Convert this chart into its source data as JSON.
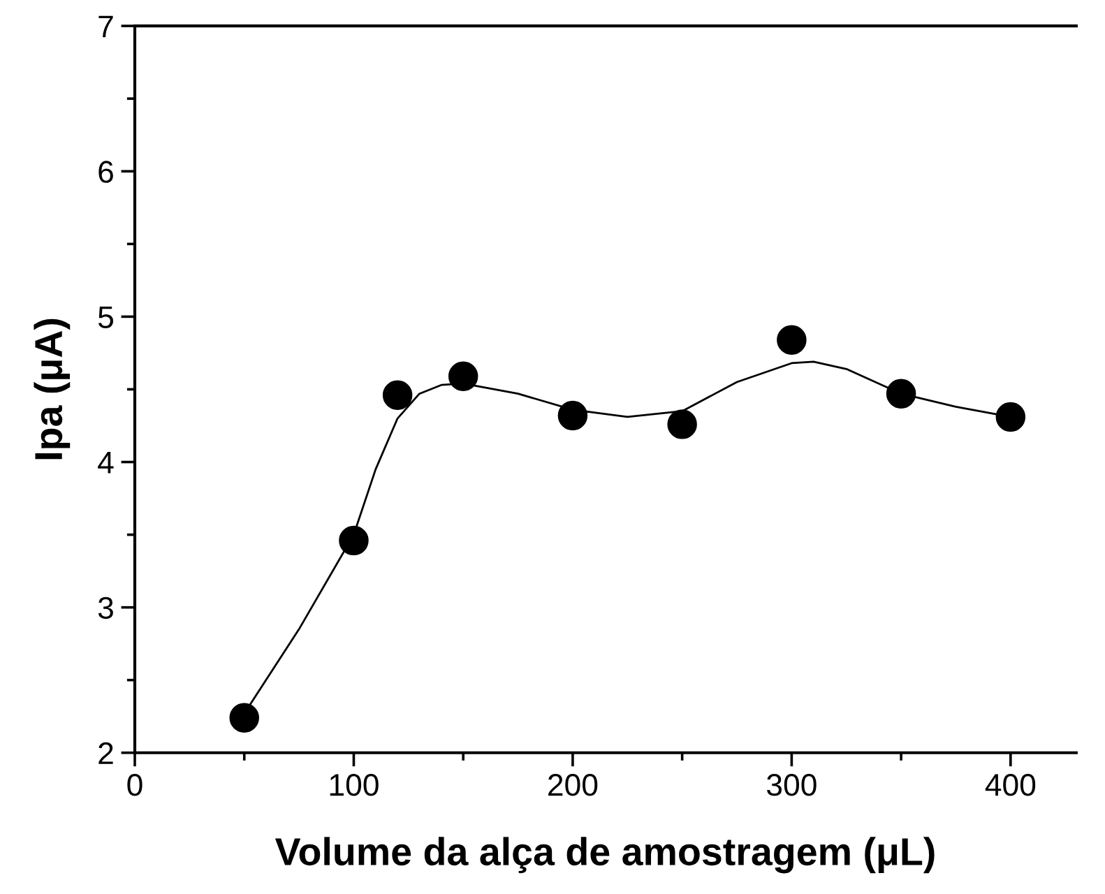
{
  "chart_data": {
    "type": "scatter",
    "xlabel": "Volume da alça de amostragem (μL)",
    "ylabel": "Ipa (μA)",
    "xlim": [
      0,
      430
    ],
    "xticks": [
      0,
      100,
      200,
      300,
      400
    ],
    "ylim": [
      2,
      7
    ],
    "yticks": [
      2,
      3,
      4,
      5,
      6,
      7
    ],
    "grid": false,
    "series": [
      {
        "color": "#000000",
        "marker": "circle",
        "x": [
          50,
          100,
          120,
          150,
          200,
          250,
          300,
          350,
          400
        ],
        "values": [
          2.24,
          3.46,
          4.46,
          4.59,
          4.32,
          4.26,
          4.84,
          4.47,
          4.31
        ]
      },
      {
        "type": "line",
        "color": "#000000",
        "line_style": "solid",
        "x": [
          50,
          75,
          100,
          110,
          120,
          130,
          140,
          150,
          175,
          200,
          225,
          250,
          275,
          300,
          310,
          325,
          350,
          375,
          400
        ],
        "values": [
          2.27,
          2.85,
          3.5,
          3.95,
          4.3,
          4.47,
          4.53,
          4.54,
          4.47,
          4.36,
          4.31,
          4.35,
          4.55,
          4.68,
          4.69,
          4.64,
          4.47,
          4.38,
          4.31
        ]
      }
    ]
  }
}
